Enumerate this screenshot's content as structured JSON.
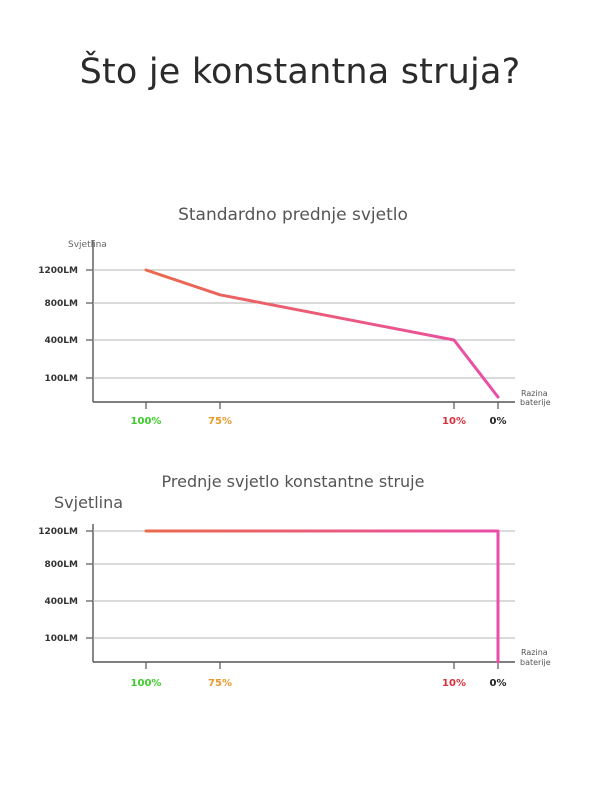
{
  "page": {
    "title": "Što je konstantna struja?"
  },
  "colors": {
    "line_gradient_start": "#ea6a4c",
    "line_gradient_end": "#ea4da8",
    "grid": "#b5b5b5",
    "axis": "#555555",
    "tick_100": "#3ccc2a",
    "tick_75": "#e79a2c",
    "tick_10": "#d8303c",
    "tick_0": "#222222"
  },
  "chart_data": [
    {
      "type": "line",
      "title": "Standardno prednje svjetlo",
      "ylabel": "Svjetlina",
      "xlabel": "Razina baterije",
      "y_ticks": [
        "1200LM",
        "800LM",
        "400LM",
        "100LM"
      ],
      "x_ticks": [
        {
          "label": "100%",
          "color": "#3ccc2a"
        },
        {
          "label": "75%",
          "color": "#e79a2c"
        },
        {
          "label": "10%",
          "color": "#d8303c"
        },
        {
          "label": "0%",
          "color": "#222222"
        }
      ],
      "series": [
        {
          "points": [
            {
              "x": "100%",
              "y": 1200
            },
            {
              "x": "75%",
              "y": 900
            },
            {
              "x": "10%",
              "y": 400
            },
            {
              "x": "0%",
              "y": 0
            }
          ]
        }
      ]
    },
    {
      "type": "line",
      "title": "Prednje svjetlo konstantne struje",
      "ylabel": "Svjetlina",
      "xlabel": "Razina baterije",
      "y_ticks": [
        "1200LM",
        "800LM",
        "400LM",
        "100LM"
      ],
      "x_ticks": [
        {
          "label": "100%",
          "color": "#3ccc2a"
        },
        {
          "label": "75%",
          "color": "#e79a2c"
        },
        {
          "label": "10%",
          "color": "#d8303c"
        },
        {
          "label": "0%",
          "color": "#222222"
        }
      ],
      "series": [
        {
          "points": [
            {
              "x": "100%",
              "y": 1200
            },
            {
              "x": "0%",
              "y": 1200
            },
            {
              "x": "0%",
              "y": 0
            }
          ]
        }
      ]
    }
  ]
}
